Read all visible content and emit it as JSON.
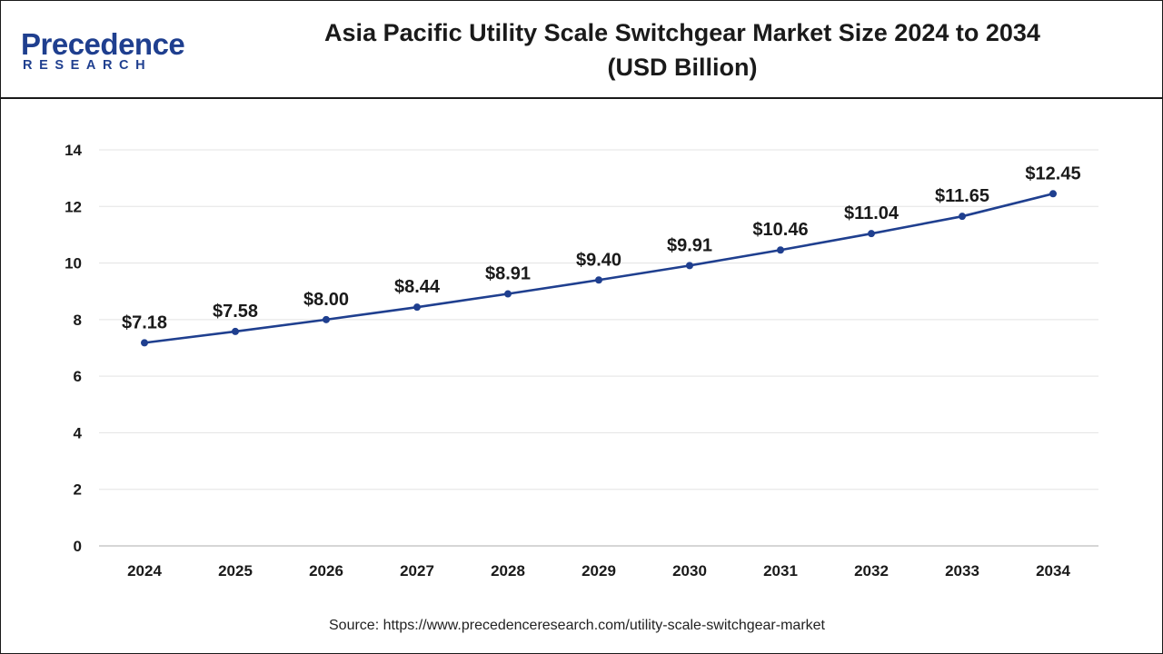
{
  "logo": {
    "main": "Precedence",
    "sub": "RESEARCH"
  },
  "title_line1": "Asia Pacific Utility Scale Switchgear Market Size 2024 to 2034",
  "title_line2": "(USD Billion)",
  "source": "Source: https://www.precedenceresearch.com/utility-scale-switchgear-market",
  "colors": {
    "line": "#1f3f8f",
    "grid": "#e3e3e3",
    "text": "#1a1a1a",
    "brand": "#1f3f8f"
  },
  "chart_data": {
    "type": "line",
    "title": "Asia Pacific Utility Scale Switchgear Market Size 2024 to 2034 (USD Billion)",
    "xlabel": "",
    "ylabel": "",
    "categories": [
      "2024",
      "2025",
      "2026",
      "2027",
      "2028",
      "2029",
      "2030",
      "2031",
      "2032",
      "2033",
      "2034"
    ],
    "series": [
      {
        "values": [
          7.18,
          7.58,
          8.0,
          8.44,
          8.91,
          9.4,
          9.91,
          10.46,
          11.04,
          11.65,
          12.45
        ],
        "labels": [
          "$7.18",
          "$7.58",
          "$8.00",
          "$8.44",
          "$8.91",
          "$9.40",
          "$9.91",
          "$10.46",
          "$11.04",
          "$11.65",
          "$12.45"
        ]
      }
    ],
    "ylim": [
      0,
      14
    ],
    "yticks": [
      0,
      2,
      4,
      6,
      8,
      10,
      12,
      14
    ],
    "grid": true,
    "legend": "none"
  }
}
